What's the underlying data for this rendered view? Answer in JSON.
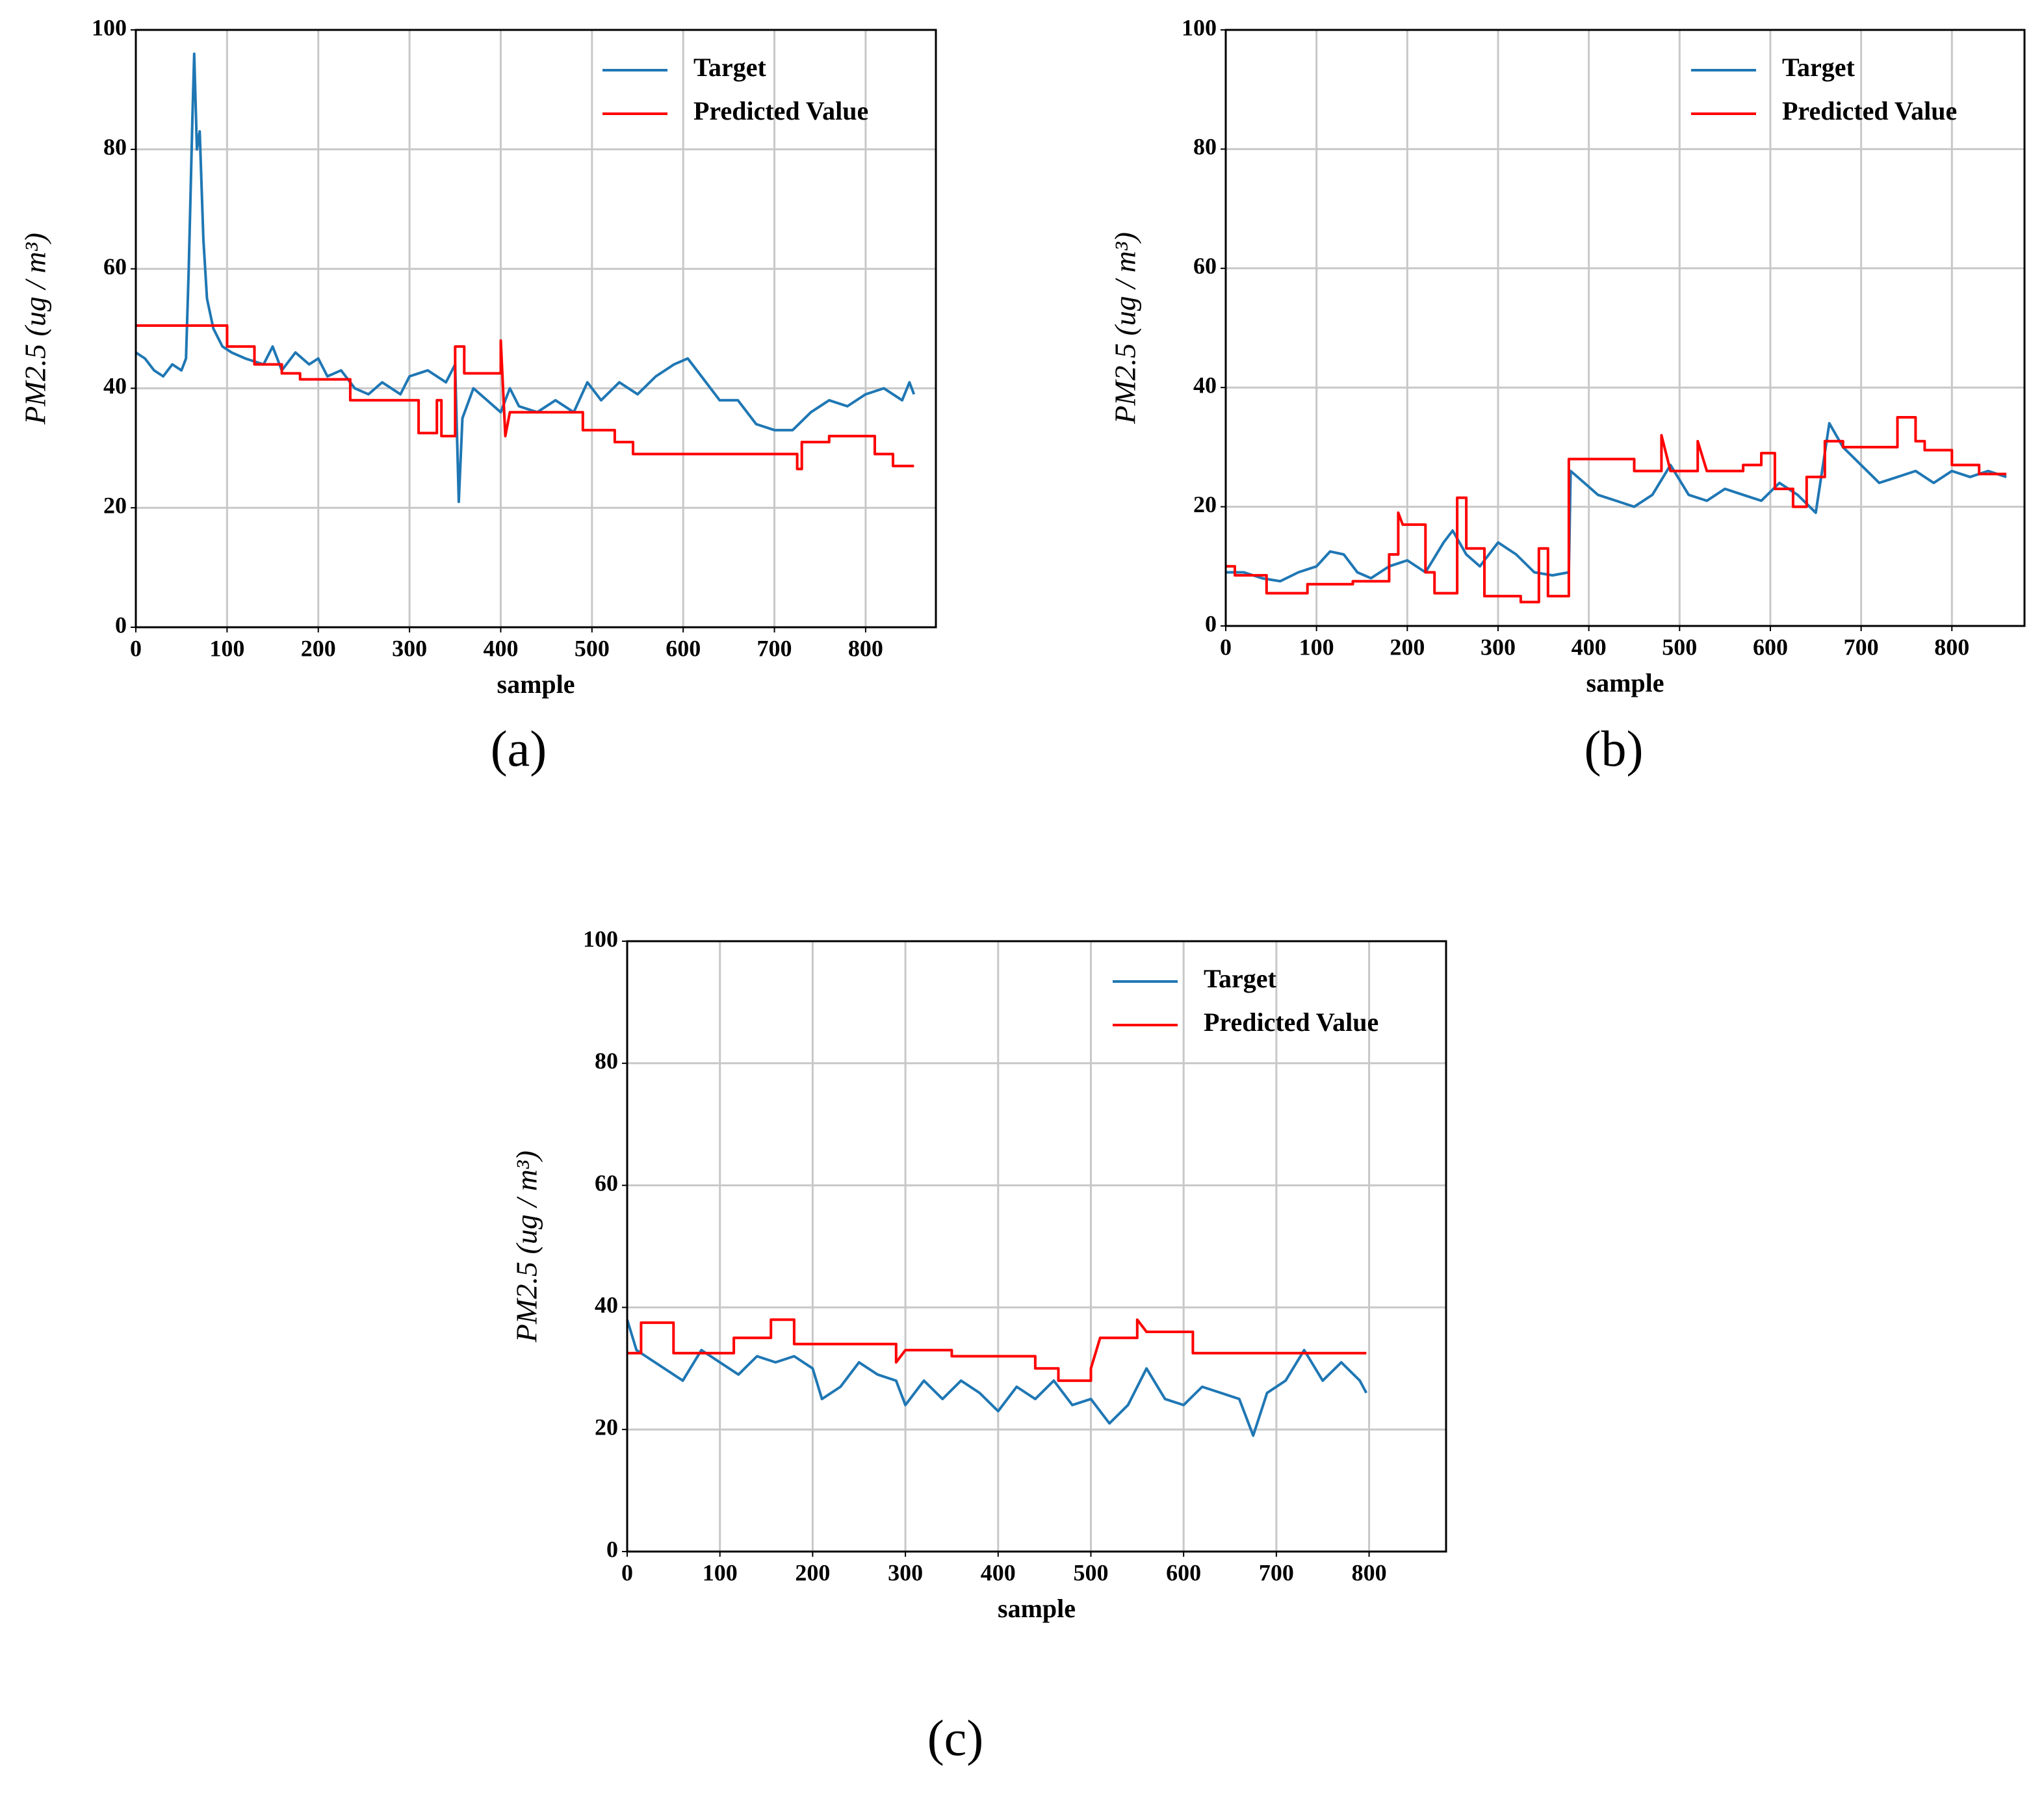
{
  "chart_data": [
    {
      "type": "line",
      "caption": "(a)",
      "x_label": "sample",
      "y_label": "PM2.5 (ug / m³)",
      "xlim": [
        0,
        877
      ],
      "ylim": [
        0,
        100
      ],
      "xticks": [
        0,
        100,
        200,
        300,
        400,
        500,
        600,
        700,
        800
      ],
      "yticks": [
        0,
        20,
        40,
        60,
        80,
        100
      ],
      "grid": true,
      "legend": "upper right",
      "series": [
        {
          "name": "Target",
          "color": "#1f77b4",
          "x": [
            0,
            10,
            20,
            30,
            40,
            50,
            55,
            58,
            62,
            64,
            67,
            70,
            74,
            78,
            85,
            95,
            105,
            120,
            140,
            150,
            160,
            175,
            190,
            200,
            210,
            225,
            240,
            255,
            270,
            290,
            300,
            320,
            340,
            350,
            354,
            358,
            370,
            385,
            400,
            410,
            420,
            440,
            460,
            480,
            495,
            510,
            530,
            550,
            570,
            590,
            605,
            620,
            640,
            660,
            680,
            700,
            720,
            740,
            760,
            780,
            800,
            820,
            840,
            848,
            853
          ],
          "values": [
            46,
            45,
            43,
            42,
            44,
            43,
            45,
            60,
            85,
            96,
            80,
            83,
            65,
            55,
            50,
            47,
            46,
            45,
            44,
            47,
            43,
            46,
            44,
            45,
            42,
            43,
            40,
            39,
            41,
            39,
            42,
            43,
            41,
            44,
            21,
            35,
            40,
            38,
            36,
            40,
            37,
            36,
            38,
            36,
            41,
            38,
            41,
            39,
            42,
            44,
            45,
            42,
            38,
            38,
            34,
            33,
            33,
            36,
            38,
            37,
            39,
            40,
            38,
            41,
            39
          ]
        },
        {
          "name": "Predicted Value",
          "color": "#ff0000",
          "x": [
            0,
            100,
            100,
            130,
            130,
            160,
            160,
            180,
            180,
            235,
            235,
            310,
            310,
            330,
            330,
            335,
            335,
            350,
            350,
            360,
            360,
            400,
            400,
            405,
            410,
            490,
            490,
            525,
            525,
            545,
            545,
            725,
            725,
            730,
            730,
            760,
            760,
            810,
            810,
            830,
            830,
            853
          ],
          "values": [
            50.5,
            50.5,
            47,
            47,
            44,
            44,
            42.5,
            42.5,
            41.5,
            41.5,
            38,
            38,
            32.5,
            32.5,
            38,
            38,
            32,
            32,
            47,
            47,
            42.5,
            42.5,
            48,
            32,
            36,
            36,
            33,
            33,
            31,
            31,
            29,
            29,
            26.5,
            26.5,
            31,
            31,
            32,
            32,
            29,
            29,
            27,
            27
          ]
        }
      ]
    },
    {
      "type": "line",
      "caption": "(b)",
      "x_label": "sample",
      "y_label": "PM2.5 (ug / m³)",
      "xlim": [
        0,
        880
      ],
      "ylim": [
        0,
        100
      ],
      "xticks": [
        0,
        100,
        200,
        300,
        400,
        500,
        600,
        700,
        800
      ],
      "yticks": [
        0,
        20,
        40,
        60,
        80,
        100
      ],
      "grid": true,
      "legend": "upper right",
      "series": [
        {
          "name": "Target",
          "color": "#1f77b4",
          "x": [
            0,
            20,
            40,
            60,
            80,
            100,
            115,
            130,
            145,
            160,
            180,
            200,
            220,
            240,
            250,
            265,
            280,
            300,
            320,
            340,
            360,
            378,
            380,
            395,
            410,
            430,
            450,
            470,
            490,
            510,
            530,
            550,
            570,
            590,
            610,
            630,
            650,
            665,
            680,
            700,
            720,
            740,
            760,
            780,
            800,
            820,
            840,
            860
          ],
          "values": [
            9,
            9,
            8,
            7.5,
            9,
            10,
            12.5,
            12,
            9,
            8,
            10,
            11,
            9,
            14,
            16,
            12,
            10,
            14,
            12,
            9,
            8.5,
            9,
            26,
            24,
            22,
            21,
            20,
            22,
            27,
            22,
            21,
            23,
            22,
            21,
            24,
            22,
            19,
            34,
            30,
            27,
            24,
            25,
            26,
            24,
            26,
            25,
            26,
            25
          ]
        },
        {
          "name": "Predicted Value",
          "color": "#ff0000",
          "x": [
            0,
            10,
            10,
            45,
            45,
            90,
            90,
            140,
            140,
            180,
            180,
            190,
            190,
            195,
            220,
            220,
            230,
            230,
            255,
            255,
            265,
            265,
            285,
            285,
            325,
            325,
            345,
            345,
            355,
            355,
            378,
            378,
            450,
            450,
            480,
            480,
            490,
            520,
            520,
            530,
            570,
            570,
            590,
            590,
            605,
            605,
            625,
            625,
            640,
            640,
            660,
            660,
            680,
            680,
            740,
            740,
            760,
            760,
            770,
            770,
            800,
            800,
            830,
            830,
            860
          ],
          "values": [
            10,
            10,
            8.5,
            8.5,
            5.5,
            5.5,
            7,
            7,
            7.5,
            7.5,
            12,
            12,
            19,
            17,
            17,
            9,
            9,
            5.5,
            5.5,
            21.5,
            21.5,
            13,
            13,
            5,
            5,
            4,
            4,
            13,
            13,
            5,
            5,
            28,
            28,
            26,
            26,
            32,
            26,
            26,
            31,
            26,
            26,
            27,
            27,
            29,
            29,
            23,
            23,
            20,
            20,
            25,
            25,
            31,
            31,
            30,
            30,
            35,
            35,
            31,
            31,
            29.5,
            29.5,
            27,
            27,
            25.5,
            25.5
          ]
        }
      ]
    },
    {
      "type": "line",
      "caption": "(c)",
      "x_label": "sample",
      "y_label": "PM2.5 (ug / m³)",
      "xlim": [
        0,
        883
      ],
      "ylim": [
        0,
        100
      ],
      "xticks": [
        0,
        100,
        200,
        300,
        400,
        500,
        600,
        700,
        800
      ],
      "yticks": [
        0,
        20,
        40,
        60,
        80,
        100
      ],
      "grid": true,
      "legend": "upper right",
      "series": [
        {
          "name": "Target",
          "color": "#1f77b4",
          "x": [
            0,
            10,
            20,
            40,
            60,
            80,
            100,
            120,
            140,
            160,
            180,
            200,
            210,
            230,
            250,
            270,
            290,
            300,
            320,
            340,
            360,
            380,
            400,
            420,
            440,
            460,
            480,
            500,
            520,
            540,
            560,
            580,
            600,
            620,
            640,
            660,
            675,
            690,
            710,
            730,
            750,
            770,
            790,
            797
          ],
          "values": [
            38,
            33,
            32,
            30,
            28,
            33,
            31,
            29,
            32,
            31,
            32,
            30,
            25,
            27,
            31,
            29,
            28,
            24,
            28,
            25,
            28,
            26,
            23,
            27,
            25,
            28,
            24,
            25,
            21,
            24,
            30,
            25,
            24,
            27,
            26,
            25,
            19,
            26,
            28,
            33,
            28,
            31,
            28,
            26
          ]
        },
        {
          "name": "Predicted Value",
          "color": "#ff0000",
          "x": [
            0,
            15,
            15,
            50,
            50,
            115,
            115,
            155,
            155,
            180,
            180,
            290,
            290,
            300,
            350,
            350,
            440,
            440,
            465,
            465,
            500,
            500,
            510,
            550,
            550,
            560,
            610,
            610,
            797
          ],
          "values": [
            32.5,
            32.5,
            37.5,
            37.5,
            32.5,
            32.5,
            35,
            35,
            38,
            38,
            34,
            34,
            31,
            33,
            33,
            32,
            32,
            30,
            30,
            28,
            28,
            30,
            35,
            35,
            38,
            36,
            36,
            32.5,
            32.5
          ]
        }
      ]
    }
  ]
}
